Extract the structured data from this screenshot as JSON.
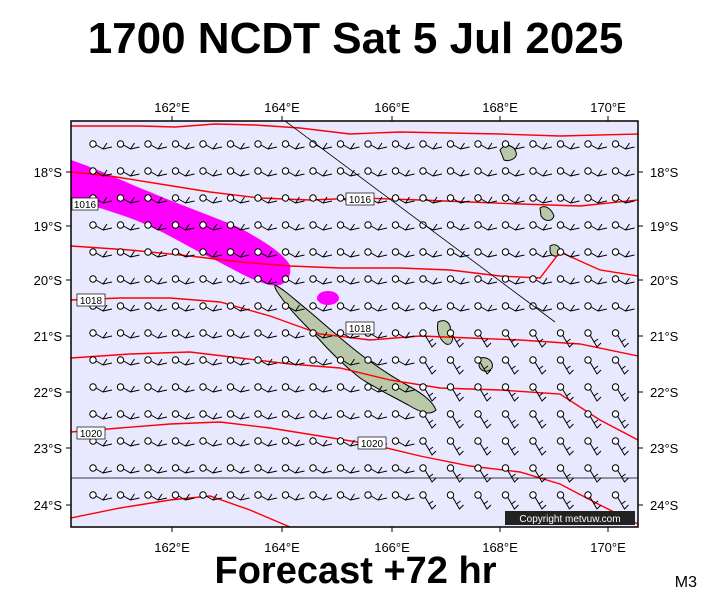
{
  "title": "1700 NCDT Sat 5 Jul 2025",
  "footer": "Forecast +72 hr",
  "model_code": "M3",
  "copyright": "Copyright metvuw.com",
  "longitude_labels": [
    "162°E",
    "164°E",
    "166°E",
    "168°E",
    "170°E"
  ],
  "latitude_labels": [
    "18°S",
    "19°S",
    "20°S",
    "21°S",
    "22°S",
    "23°S",
    "24°S"
  ],
  "isobar_labels": [
    "1016",
    "1016",
    "1018",
    "1018",
    "1020",
    "1020"
  ],
  "colors": {
    "ocean": "#e8e8ff",
    "isobar": "#ff0000",
    "rain": "#ff00ff",
    "land": "#b8c8a8",
    "frame": "#000000"
  }
}
